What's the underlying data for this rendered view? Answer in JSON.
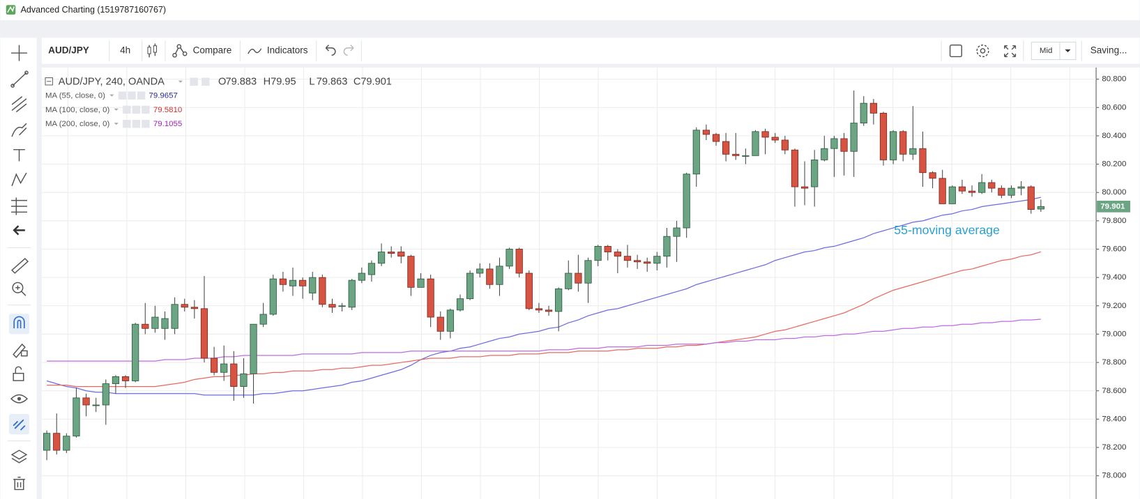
{
  "window_title": "Advanced Charting (1519787160767)",
  "toolbar": {
    "symbol": "AUD/JPY",
    "interval": "4h",
    "compare": "Compare",
    "indicators": "Indicators",
    "price_source": "Mid",
    "status": "Saving..."
  },
  "chart_data": {
    "type": "candlestick",
    "title": "AUD/JPY, 240, OANDA",
    "ohlc_labels": [
      "O",
      "H",
      "L",
      "C"
    ],
    "annotation": "55-moving average",
    "up_color": "#6ba583",
    "down_color": "#d75442",
    "ylim": [
      77.836,
      80.882
    ],
    "yticks": [
      {
        "value": 78.0,
        "label": "78.000"
      },
      {
        "value": 78.2,
        "label": "78.200"
      },
      {
        "value": 78.4,
        "label": "78.400"
      },
      {
        "value": 78.6,
        "label": "78.600"
      },
      {
        "value": 78.8,
        "label": "78.800"
      },
      {
        "value": 79.0,
        "label": "79.000"
      },
      {
        "value": 79.2,
        "label": "79.200"
      },
      {
        "value": 79.4,
        "label": "79.400"
      },
      {
        "value": 79.6,
        "label": "79.600"
      },
      {
        "value": 79.8,
        "label": "79.800"
      },
      {
        "value": 80.0,
        "label": "80.000"
      },
      {
        "value": 80.2,
        "label": "80.200"
      },
      {
        "value": 80.4,
        "label": "80.400"
      },
      {
        "value": 80.6,
        "label": "80.600"
      },
      {
        "value": 80.8,
        "label": "80.800"
      }
    ],
    "grid": true,
    "candles": {
      "open": [
        78.18,
        78.3,
        78.18,
        78.28,
        78.55,
        78.5,
        78.5,
        78.65,
        78.7,
        78.67,
        79.07,
        79.04,
        79.04,
        79.04,
        79.21,
        79.19,
        79.18,
        78.83,
        78.73,
        78.79,
        78.63,
        78.72,
        79.07,
        79.14,
        79.39,
        79.34,
        79.38,
        79.29,
        79.4,
        79.21,
        79.2,
        79.19,
        79.38,
        79.42,
        79.5,
        79.58,
        79.58,
        79.55,
        79.33,
        79.39,
        79.12,
        79.02,
        79.17,
        79.25,
        79.43,
        79.46,
        79.35,
        79.48,
        79.6,
        79.43,
        79.18,
        79.17,
        79.16,
        79.32,
        79.43,
        79.36,
        79.52,
        79.62,
        79.58,
        79.55,
        79.52,
        79.51,
        79.5,
        79.55,
        79.69,
        79.75,
        80.13,
        80.44,
        80.41,
        80.36,
        80.27,
        80.26,
        80.26,
        80.43,
        80.39,
        80.37,
        80.3,
        80.04,
        80.04,
        80.23,
        80.31,
        80.38,
        80.29,
        80.49,
        80.63,
        80.56,
        80.23,
        80.43,
        80.27,
        80.31,
        80.14,
        80.1,
        79.92,
        80.04,
        80.01,
        80.0,
        80.07,
        80.03,
        79.98,
        80.03,
        80.04,
        79.883
      ],
      "high": [
        78.32,
        78.44,
        78.3,
        78.62,
        78.58,
        78.55,
        78.68,
        78.71,
        78.71,
        79.08,
        79.22,
        79.2,
        79.16,
        79.26,
        79.25,
        79.24,
        79.41,
        78.91,
        78.92,
        78.88,
        78.83,
        79.07,
        79.22,
        79.42,
        79.44,
        79.47,
        79.4,
        79.44,
        79.42,
        79.25,
        79.22,
        79.39,
        79.47,
        79.52,
        79.64,
        79.62,
        79.62,
        79.56,
        79.43,
        79.42,
        79.16,
        79.18,
        79.28,
        79.45,
        79.5,
        79.5,
        79.54,
        79.61,
        79.61,
        79.45,
        79.22,
        79.2,
        79.33,
        79.52,
        79.56,
        79.54,
        79.63,
        79.63,
        79.6,
        79.63,
        79.56,
        79.54,
        79.58,
        79.75,
        79.8,
        80.14,
        80.46,
        80.48,
        80.42,
        80.42,
        80.42,
        80.31,
        80.44,
        80.45,
        80.42,
        80.4,
        80.31,
        80.22,
        80.3,
        80.4,
        80.4,
        80.42,
        80.72,
        80.68,
        80.66,
        80.57,
        80.44,
        80.44,
        80.61,
        80.43,
        80.15,
        80.16,
        80.05,
        80.09,
        80.05,
        80.13,
        80.09,
        80.05,
        80.05,
        80.08,
        80.05,
        79.95
      ],
      "low": [
        78.11,
        78.15,
        78.16,
        78.27,
        78.42,
        78.45,
        78.36,
        78.58,
        78.62,
        78.66,
        79.0,
        79.01,
        78.96,
        79.0,
        79.16,
        79.11,
        78.8,
        78.71,
        78.67,
        78.53,
        78.55,
        78.51,
        79.05,
        79.13,
        79.3,
        79.27,
        79.25,
        79.24,
        79.19,
        79.15,
        79.16,
        79.17,
        79.36,
        79.37,
        79.48,
        79.54,
        79.5,
        79.27,
        79.33,
        79.05,
        78.96,
        78.97,
        79.16,
        79.24,
        79.4,
        79.32,
        79.27,
        79.46,
        79.4,
        79.17,
        79.15,
        79.13,
        79.02,
        79.31,
        79.3,
        79.22,
        79.48,
        79.52,
        79.43,
        79.47,
        79.46,
        79.44,
        79.45,
        79.47,
        79.51,
        79.68,
        80.04,
        80.37,
        80.33,
        80.22,
        80.23,
        80.2,
        80.26,
        80.27,
        80.35,
        80.27,
        79.9,
        79.91,
        79.9,
        80.22,
        80.11,
        80.12,
        80.11,
        80.47,
        80.48,
        80.19,
        80.2,
        80.22,
        80.23,
        80.04,
        80.03,
        79.92,
        79.92,
        79.99,
        79.97,
        79.99,
        80.0,
        79.96,
        79.96,
        79.98,
        79.85,
        79.863
      ],
      "close": [
        78.3,
        78.18,
        78.28,
        78.55,
        78.5,
        78.5,
        78.65,
        78.7,
        78.67,
        79.07,
        79.04,
        79.12,
        79.11,
        79.21,
        79.19,
        79.18,
        78.83,
        78.73,
        78.79,
        78.63,
        78.72,
        79.07,
        79.14,
        79.39,
        79.35,
        79.38,
        79.34,
        79.4,
        79.21,
        79.19,
        79.2,
        79.38,
        79.43,
        79.5,
        79.58,
        79.57,
        79.55,
        79.33,
        79.39,
        79.12,
        79.02,
        79.17,
        79.25,
        79.43,
        79.46,
        79.35,
        79.48,
        79.6,
        79.43,
        79.18,
        79.17,
        79.16,
        79.32,
        79.43,
        79.36,
        79.52,
        79.62,
        79.58,
        79.55,
        79.52,
        79.51,
        79.5,
        79.55,
        79.69,
        79.75,
        80.13,
        80.44,
        80.41,
        80.36,
        80.27,
        80.26,
        80.26,
        80.43,
        80.39,
        80.37,
        80.3,
        80.04,
        80.03,
        80.23,
        80.31,
        80.38,
        80.29,
        80.49,
        80.63,
        80.56,
        80.23,
        80.43,
        80.27,
        80.31,
        80.14,
        80.1,
        79.92,
        80.04,
        80.01,
        80.0,
        80.07,
        80.03,
        79.98,
        80.03,
        80.04,
        79.88,
        79.901
      ]
    },
    "series": [
      {
        "name": "MA (55, close, 0)",
        "color": "#6b6be0",
        "label_color": "#2b2b9c",
        "legend_value": "79.9657",
        "values": [
          78.67,
          78.65,
          78.63,
          78.62,
          78.6,
          78.59,
          78.59,
          78.58,
          78.58,
          78.58,
          78.58,
          78.58,
          78.58,
          78.58,
          78.58,
          78.58,
          78.57,
          78.57,
          78.57,
          78.57,
          78.57,
          78.57,
          78.58,
          78.58,
          78.59,
          78.6,
          78.6,
          78.61,
          78.62,
          78.63,
          78.64,
          78.66,
          78.67,
          78.69,
          78.71,
          78.73,
          78.75,
          78.78,
          78.82,
          78.85,
          78.87,
          78.88,
          78.9,
          78.91,
          78.93,
          78.95,
          78.97,
          78.98,
          79.0,
          79.01,
          79.02,
          79.04,
          79.05,
          79.08,
          79.1,
          79.13,
          79.15,
          79.17,
          79.18,
          79.2,
          79.22,
          79.24,
          79.26,
          79.28,
          79.3,
          79.32,
          79.35,
          79.37,
          79.39,
          79.41,
          79.43,
          79.45,
          79.47,
          79.49,
          79.52,
          79.54,
          79.56,
          79.58,
          79.59,
          79.61,
          79.62,
          79.64,
          79.66,
          79.68,
          79.71,
          79.73,
          79.75,
          79.77,
          79.79,
          79.8,
          79.82,
          79.84,
          79.85,
          79.87,
          79.88,
          79.9,
          79.91,
          79.92,
          79.93,
          79.94,
          79.95,
          79.9657
        ]
      },
      {
        "name": "MA (100, close, 0)",
        "color": "#e8695e",
        "label_color": "#d32f2f",
        "legend_value": "79.5810",
        "values": [
          78.64,
          78.64,
          78.64,
          78.63,
          78.63,
          78.63,
          78.63,
          78.63,
          78.63,
          78.63,
          78.63,
          78.63,
          78.64,
          78.65,
          78.66,
          78.68,
          78.69,
          78.7,
          78.7,
          78.71,
          78.71,
          78.72,
          78.72,
          78.73,
          78.73,
          78.74,
          78.74,
          78.74,
          78.75,
          78.75,
          78.76,
          78.76,
          78.77,
          78.78,
          78.78,
          78.79,
          78.8,
          78.81,
          78.82,
          78.83,
          78.83,
          78.83,
          78.84,
          78.84,
          78.84,
          78.85,
          78.85,
          78.85,
          78.86,
          78.86,
          78.86,
          78.87,
          78.87,
          78.87,
          78.88,
          78.88,
          78.88,
          78.88,
          78.89,
          78.89,
          78.9,
          78.9,
          78.9,
          78.91,
          78.91,
          78.92,
          78.92,
          78.93,
          78.94,
          78.95,
          78.96,
          78.97,
          78.98,
          79.0,
          79.02,
          79.03,
          79.05,
          79.07,
          79.09,
          79.11,
          79.13,
          79.15,
          79.18,
          79.21,
          79.25,
          79.28,
          79.31,
          79.33,
          79.35,
          79.37,
          79.39,
          79.41,
          79.43,
          79.45,
          79.46,
          79.48,
          79.5,
          79.52,
          79.53,
          79.55,
          79.56,
          79.581
        ]
      },
      {
        "name": "MA (200, close, 0)",
        "color": "#c06ae0",
        "label_color": "#a020c0",
        "legend_value": "79.1055",
        "values": [
          78.81,
          78.81,
          78.81,
          78.81,
          78.81,
          78.81,
          78.81,
          78.81,
          78.81,
          78.81,
          78.81,
          78.81,
          78.82,
          78.82,
          78.82,
          78.83,
          78.83,
          78.83,
          78.84,
          78.84,
          78.85,
          78.85,
          78.85,
          78.85,
          78.85,
          78.85,
          78.86,
          78.86,
          78.86,
          78.86,
          78.86,
          78.86,
          78.87,
          78.87,
          78.87,
          78.87,
          78.87,
          78.88,
          78.88,
          78.88,
          78.88,
          78.88,
          78.88,
          78.88,
          78.88,
          78.88,
          78.88,
          78.88,
          78.88,
          78.88,
          78.88,
          78.89,
          78.89,
          78.89,
          78.9,
          78.9,
          78.9,
          78.91,
          78.91,
          78.91,
          78.91,
          78.92,
          78.92,
          78.92,
          78.93,
          78.93,
          78.93,
          78.93,
          78.94,
          78.94,
          78.95,
          78.95,
          78.96,
          78.96,
          78.96,
          78.97,
          78.97,
          78.98,
          78.98,
          78.99,
          78.99,
          79.0,
          79.0,
          79.01,
          79.02,
          79.02,
          79.03,
          79.04,
          79.04,
          79.05,
          79.05,
          79.06,
          79.06,
          79.07,
          79.07,
          79.08,
          79.08,
          79.09,
          79.09,
          79.1,
          79.1,
          79.1055
        ]
      }
    ]
  }
}
